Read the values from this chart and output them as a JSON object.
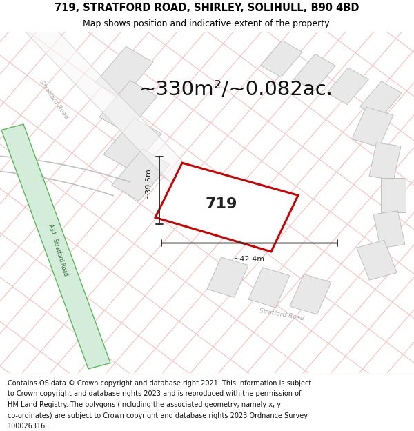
{
  "title_line1": "719, STRATFORD ROAD, SHIRLEY, SOLIHULL, B90 4BD",
  "title_line2": "Map shows position and indicative extent of the property.",
  "area_text": "~330m²/~0.082ac.",
  "property_number": "719",
  "width_label": "~42.4m",
  "height_label": "~39.5m",
  "bg_color": "#ffffff",
  "map_bg": "#ffffff",
  "road_pink": "#f5c0c0",
  "road_gray": "#c8c8c8",
  "bldg_fill": "#e8e8e8",
  "bldg_edge": "#c0c0c0",
  "road_green_fill": "#d4edda",
  "road_green_edge": "#5cb85c",
  "property_edge": "#cc0000",
  "footer_fontsize": 7.0,
  "title_fontsize": 10.5,
  "subtitle_fontsize": 9.0,
  "area_fontsize": 21,
  "dim_fontsize": 8,
  "prop_label_fontsize": 16,
  "footer_lines": [
    "Contains OS data © Crown copyright and database right 2021. This information is subject",
    "to Crown copyright and database rights 2023 and is reproduced with the permission of",
    "HM Land Registry. The polygons (including the associated geometry, namely x, y",
    "co-ordinates) are subject to Crown copyright and database rights 2023 Ordnance Survey",
    "100026316."
  ]
}
